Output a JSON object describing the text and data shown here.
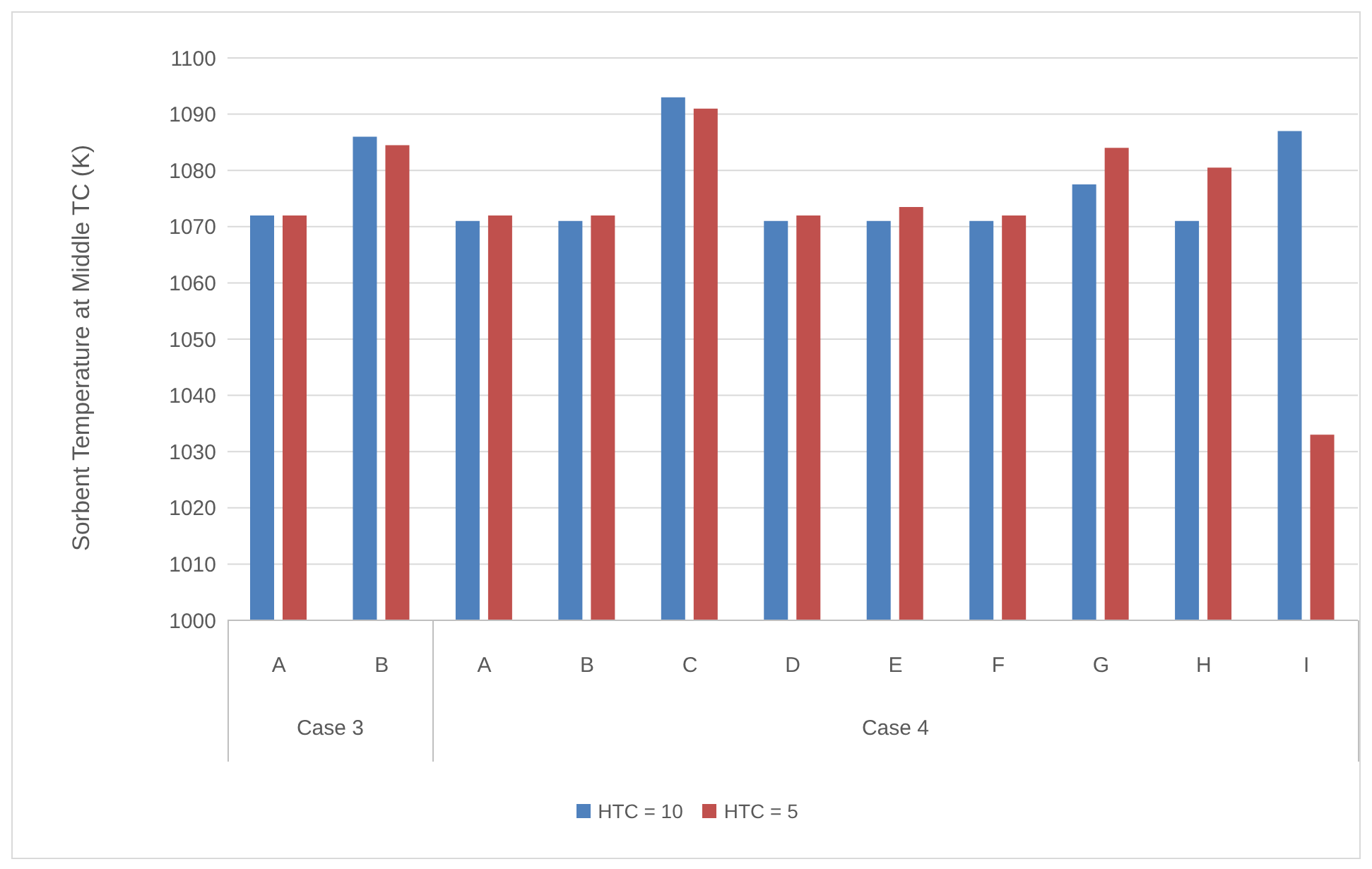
{
  "chart_data": {
    "type": "bar",
    "ylabel": "Sorbent Temperature at Middle TC (K)",
    "categories": [
      "A",
      "B",
      "A",
      "B",
      "C",
      "D",
      "E",
      "F",
      "G",
      "H",
      "I"
    ],
    "series": [
      {
        "name": "HTC = 10",
        "color": "#4f81bd",
        "values": [
          1072,
          1086,
          1071,
          1071,
          1093,
          1071,
          1071,
          1071,
          1077.5,
          1071,
          1087
        ]
      },
      {
        "name": "HTC = 5",
        "color": "#c0504d",
        "values": [
          1072,
          1084.5,
          1072,
          1072,
          1091,
          1072,
          1073.5,
          1072,
          1084,
          1080.5,
          1033
        ]
      }
    ],
    "ylim": [
      1000,
      1100
    ],
    "yticks": [
      1000,
      1010,
      1020,
      1030,
      1040,
      1050,
      1060,
      1070,
      1080,
      1090,
      1100
    ],
    "grid": "y",
    "legend": "bottom",
    "annotations": [
      "Case 3",
      "Case 4"
    ]
  }
}
